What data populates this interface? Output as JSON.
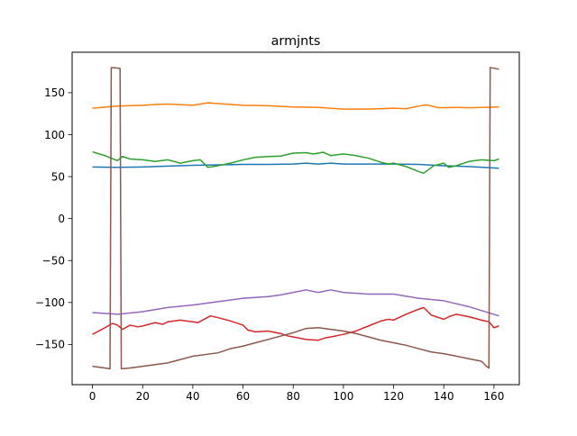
{
  "chart_data": {
    "type": "line",
    "title": "armjnts",
    "xlabel": "",
    "ylabel": "",
    "xlim": [
      -8.1,
      170.1
    ],
    "ylim": [
      -197.9,
      198.2
    ],
    "xticks": [
      0,
      20,
      40,
      60,
      80,
      100,
      120,
      140,
      160
    ],
    "yticks": [
      -150,
      -100,
      -50,
      0,
      50,
      100,
      150
    ],
    "grid": false,
    "legend": "none",
    "series": [
      {
        "color": "#1f77b4",
        "x": [
          0,
          10,
          20,
          30,
          40,
          50,
          60,
          70,
          80,
          85,
          90,
          95,
          100,
          110,
          120,
          130,
          140,
          150,
          162
        ],
        "y": [
          61.5,
          61,
          61.5,
          62.5,
          63.5,
          64,
          64.5,
          64.5,
          65,
          66,
          65,
          66,
          65,
          65,
          65,
          64.5,
          63,
          62,
          60
        ]
      },
      {
        "color": "#ff7f0e",
        "x": [
          0,
          10,
          20,
          25,
          30,
          40,
          46,
          50,
          60,
          70,
          80,
          90,
          100,
          110,
          120,
          125,
          130,
          133,
          138,
          145,
          150,
          162
        ],
        "y": [
          131.5,
          134,
          135,
          136,
          136.5,
          135,
          138,
          137,
          135,
          134.5,
          133,
          132.5,
          130.5,
          130.5,
          131.5,
          131,
          134,
          135.5,
          132,
          132.5,
          132,
          133
        ]
      },
      {
        "color": "#2ca02c",
        "x": [
          0,
          5,
          10,
          12,
          15,
          20,
          25,
          30,
          35,
          40,
          43,
          46,
          50,
          55,
          60,
          65,
          70,
          75,
          80,
          85,
          88,
          92,
          95,
          100,
          105,
          110,
          115,
          118,
          120,
          125,
          130,
          132,
          136,
          140,
          142,
          145,
          150,
          155,
          160,
          162
        ],
        "y": [
          79.5,
          75,
          69,
          74,
          71,
          70,
          68,
          70,
          66,
          69,
          70,
          61,
          63,
          66,
          70,
          73,
          74,
          74.5,
          78,
          78.5,
          77,
          79,
          75,
          77,
          75,
          72,
          67,
          65,
          66,
          62,
          56,
          54,
          63,
          66,
          61,
          63,
          68,
          70,
          69,
          71
        ]
      },
      {
        "color": "#d62728",
        "x": [
          0,
          5,
          8,
          10,
          12,
          15,
          18,
          20,
          25,
          28,
          30,
          35,
          40,
          42,
          47,
          50,
          55,
          60,
          62,
          65,
          70,
          75,
          78,
          80,
          85,
          90,
          93,
          95,
          100,
          105,
          110,
          115,
          118,
          120,
          125,
          130,
          132,
          135,
          140,
          142,
          145,
          150,
          155,
          158,
          160,
          162
        ],
        "y": [
          -138,
          -130,
          -125,
          -127,
          -132,
          -127,
          -129,
          -128,
          -124,
          -126,
          -123,
          -121,
          -123,
          -124,
          -116,
          -118,
          -122,
          -127,
          -133,
          -135,
          -134,
          -137,
          -140,
          -141,
          -144,
          -145,
          -142,
          -141,
          -138,
          -134,
          -128,
          -122,
          -120,
          -121,
          -114,
          -108,
          -106,
          -115,
          -120,
          -117,
          -114,
          -117,
          -121,
          -123,
          -130,
          -128
        ]
      },
      {
        "color": "#9467bd",
        "x": [
          0,
          10,
          20,
          30,
          40,
          50,
          60,
          70,
          75,
          80,
          85,
          90,
          95,
          100,
          110,
          120,
          130,
          140,
          150,
          162
        ],
        "y": [
          -112,
          -114,
          -111,
          -106,
          -103,
          -99,
          -95,
          -93,
          -91,
          -88,
          -85,
          -88,
          -85,
          -88,
          -90,
          -90,
          -95,
          -98,
          -105,
          -116
        ]
      },
      {
        "color": "#8c564b",
        "x": [
          0,
          5,
          7,
          7.5,
          11,
          11.5,
          15,
          20,
          25,
          30,
          35,
          40,
          45,
          50,
          55,
          60,
          65,
          70,
          75,
          80,
          85,
          90,
          95,
          100,
          105,
          110,
          115,
          120,
          125,
          130,
          135,
          140,
          145,
          150,
          155,
          157,
          158,
          158.5,
          162
        ],
        "y": [
          -176,
          -178,
          -179,
          180,
          179,
          -179,
          -178,
          -176,
          -174,
          -172,
          -168,
          -164,
          -162,
          -160,
          -155,
          -152,
          -148,
          -144,
          -140,
          -136,
          -131,
          -130,
          -132,
          -134,
          -137,
          -141,
          -145,
          -148,
          -151,
          -155,
          -159,
          -161,
          -164,
          -167,
          -170,
          -176,
          -178,
          180,
          178
        ]
      }
    ]
  }
}
